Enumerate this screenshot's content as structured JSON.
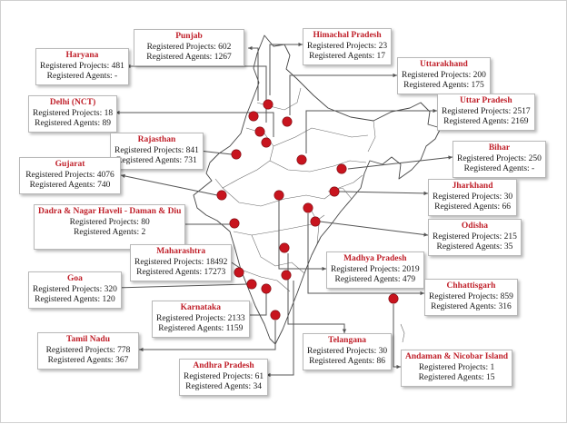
{
  "colors": {
    "marker": "#c8141e",
    "title": "#c0202a",
    "border": "#b8b8b8",
    "line": "#555555"
  },
  "states": [
    {
      "key": "punjab",
      "name": "Punjab",
      "projects": "602",
      "agents": "1267"
    },
    {
      "key": "himachal-pradesh",
      "name": "Himachal Pradesh",
      "projects": "23",
      "agents": "17"
    },
    {
      "key": "haryana",
      "name": "Haryana",
      "projects": "481",
      "agents": "-"
    },
    {
      "key": "uttarakhand",
      "name": "Uttarakhand",
      "projects": "200",
      "agents": "175"
    },
    {
      "key": "delhi",
      "name": "Delhi (NCT)",
      "projects": "18",
      "agents": "89"
    },
    {
      "key": "uttar-pradesh",
      "name": "Uttar Pradesh",
      "projects": "2517",
      "agents": "2169"
    },
    {
      "key": "rajasthan",
      "name": "Rajasthan",
      "projects": "841",
      "agents": "731"
    },
    {
      "key": "bihar",
      "name": "Bihar",
      "projects": "250",
      "agents": "-"
    },
    {
      "key": "gujarat",
      "name": "Gujarat",
      "projects": "4076",
      "agents": "740"
    },
    {
      "key": "jharkhand",
      "name": "Jharkhand",
      "projects": "30",
      "agents": "66"
    },
    {
      "key": "dadra",
      "name": "Dadra & Nagar Haveli - Daman & Diu",
      "projects": "80",
      "agents": "2"
    },
    {
      "key": "odisha",
      "name": "Odisha",
      "projects": "215",
      "agents": "35"
    },
    {
      "key": "maharashtra",
      "name": "Maharashtra",
      "projects": "18492",
      "agents": "17273"
    },
    {
      "key": "madhya-pradesh",
      "name": "Madhya Pradesh",
      "projects": "2019",
      "agents": "479"
    },
    {
      "key": "goa",
      "name": "Goa",
      "projects": "320",
      "agents": "120"
    },
    {
      "key": "chhattisgarh",
      "name": "Chhattisgarh",
      "projects": "859",
      "agents": "316"
    },
    {
      "key": "karnataka",
      "name": "Karnataka",
      "projects": "2133",
      "agents": "1159"
    },
    {
      "key": "tamil-nadu",
      "name": "Tamil Nadu",
      "projects": "778",
      "agents": "367"
    },
    {
      "key": "telangana",
      "name": "Telangana",
      "projects": "30",
      "agents": "86"
    },
    {
      "key": "andaman",
      "name": "Andaman & Nicobar Island",
      "projects": "1",
      "agents": "15"
    },
    {
      "key": "andhra-pradesh",
      "name": "Andhra Pradesh",
      "projects": "61",
      "agents": "34"
    }
  ],
  "labels": {
    "projects_prefix": "Registered Projects: ",
    "agents_prefix": "Registered Agents: "
  }
}
